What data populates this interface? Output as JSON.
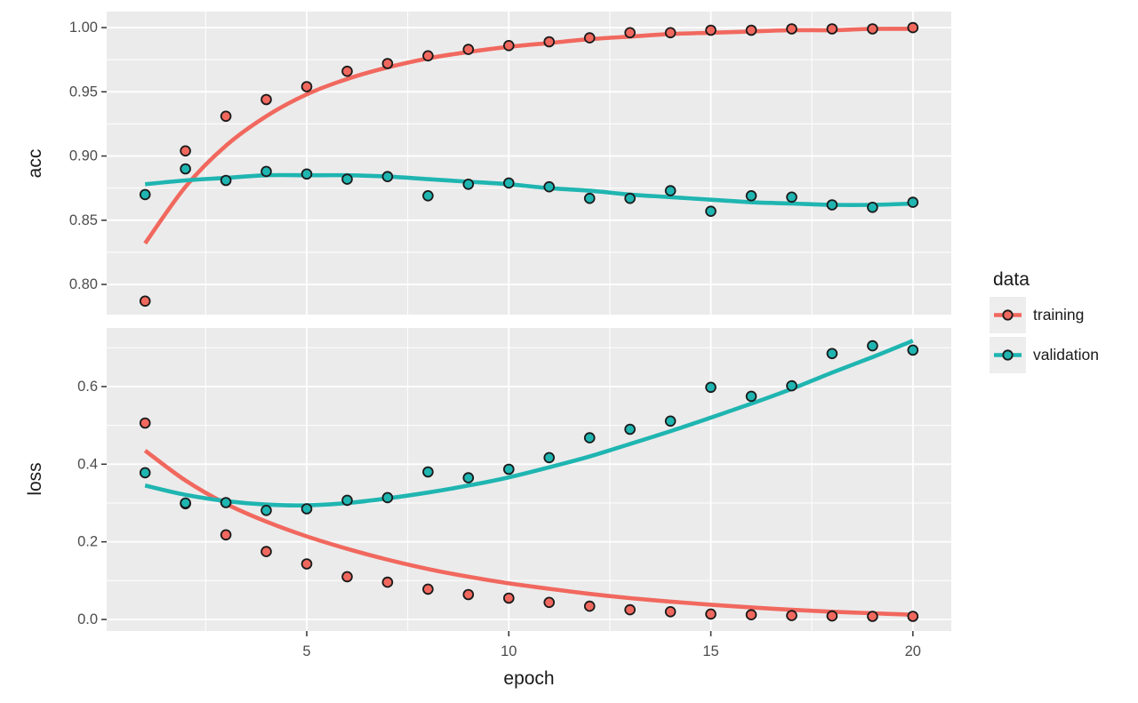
{
  "chart_data": {
    "type": "line",
    "title": "",
    "xlabel": "epoch",
    "x": [
      1,
      2,
      3,
      4,
      5,
      6,
      7,
      8,
      9,
      10,
      11,
      12,
      13,
      14,
      15,
      16,
      17,
      18,
      19,
      20
    ],
    "xlim": [
      0.05,
      20.95
    ],
    "xticks": [
      5,
      10,
      15,
      20
    ],
    "xtick_labels": [
      "5",
      "10",
      "15",
      "20"
    ],
    "xticks_minor": [
      2.5,
      7.5,
      12.5,
      17.5
    ],
    "grid": true,
    "legend": {
      "title": "data",
      "position": "right",
      "entries": [
        {
          "label": "training",
          "color": "#F1685E"
        },
        {
          "label": "validation",
          "color": "#1FB5B1"
        }
      ]
    },
    "style": {
      "panel_bg": "#EBEBEB",
      "grid_color": "#FFFFFF",
      "tick_color": "#333333",
      "tick_label_color": "#4D4D4D",
      "title_color": "#1A1A1A",
      "point_stroke": "#1A1A1A",
      "legend_key_bg": "#EDEDED"
    },
    "facets": [
      {
        "name": "acc",
        "ylabel": "acc",
        "ylim": [
          0.7765,
          1.0125
        ],
        "yticks": [
          0.8,
          0.85,
          0.9,
          0.95,
          1.0
        ],
        "ytick_labels": [
          "0.80",
          "0.85",
          "0.90",
          "0.95",
          "1.00"
        ],
        "yticks_minor": [
          0.825,
          0.875,
          0.925,
          0.975
        ],
        "series": [
          {
            "name": "training",
            "color": "#F1685E",
            "values": [
              0.787,
              0.904,
              0.931,
              0.944,
              0.954,
              0.966,
              0.972,
              0.978,
              0.983,
              0.986,
              0.989,
              0.992,
              0.996,
              0.996,
              0.998,
              0.998,
              0.999,
              0.999,
              0.999,
              1.0
            ],
            "smooth": [
              0.832,
              0.876,
              0.908,
              0.931,
              0.948,
              0.96,
              0.969,
              0.976,
              0.981,
              0.985,
              0.988,
              0.991,
              0.993,
              0.995,
              0.996,
              0.997,
              0.998,
              0.998,
              0.999,
              0.999
            ]
          },
          {
            "name": "validation",
            "color": "#1FB5B1",
            "values": [
              0.87,
              0.89,
              0.881,
              0.888,
              0.886,
              0.882,
              0.884,
              0.869,
              0.878,
              0.879,
              0.876,
              0.867,
              0.867,
              0.873,
              0.857,
              0.869,
              0.868,
              0.862,
              0.86,
              0.864
            ],
            "smooth": [
              0.878,
              0.881,
              0.883,
              0.885,
              0.885,
              0.885,
              0.884,
              0.882,
              0.88,
              0.878,
              0.875,
              0.873,
              0.87,
              0.868,
              0.866,
              0.864,
              0.863,
              0.862,
              0.862,
              0.863
            ]
          }
        ]
      },
      {
        "name": "loss",
        "ylabel": "loss",
        "ylim": [
          -0.0298,
          0.751
        ],
        "yticks": [
          0.0,
          0.2,
          0.4,
          0.6
        ],
        "ytick_labels": [
          "0.0",
          "0.2",
          "0.4",
          "0.6"
        ],
        "yticks_minor": [
          0.1,
          0.3,
          0.5,
          0.7
        ],
        "series": [
          {
            "name": "training",
            "color": "#F1685E",
            "values": [
              0.506,
              0.298,
              0.218,
              0.175,
              0.143,
              0.11,
              0.096,
              0.078,
              0.064,
              0.055,
              0.044,
              0.034,
              0.025,
              0.02,
              0.014,
              0.012,
              0.01,
              0.009,
              0.008,
              0.008
            ],
            "smooth": [
              0.435,
              0.358,
              0.298,
              0.252,
              0.214,
              0.182,
              0.154,
              0.13,
              0.11,
              0.093,
              0.079,
              0.066,
              0.055,
              0.046,
              0.038,
              0.031,
              0.025,
              0.02,
              0.016,
              0.012
            ]
          },
          {
            "name": "validation",
            "color": "#1FB5B1",
            "values": [
              0.378,
              0.3,
              0.301,
              0.281,
              0.285,
              0.307,
              0.314,
              0.38,
              0.365,
              0.387,
              0.417,
              0.468,
              0.49,
              0.511,
              0.598,
              0.575,
              0.602,
              0.685,
              0.705,
              0.694
            ],
            "smooth": [
              0.345,
              0.321,
              0.305,
              0.296,
              0.294,
              0.3,
              0.312,
              0.327,
              0.345,
              0.366,
              0.392,
              0.42,
              0.452,
              0.485,
              0.52,
              0.556,
              0.594,
              0.636,
              0.676,
              0.718
            ]
          }
        ]
      }
    ]
  }
}
